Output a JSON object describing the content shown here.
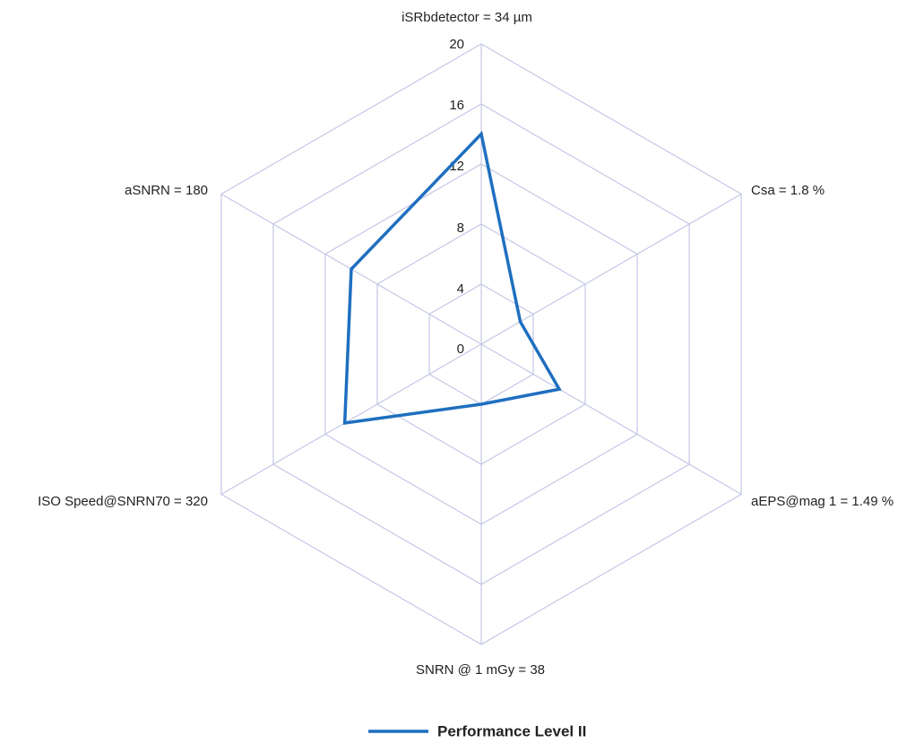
{
  "chart_data": {
    "type": "radar",
    "categories": [
      "iSRbdetector = 34 µm",
      "Csa = 1.8 %",
      "aEPS@mag 1 = 1.49 %",
      "SNRN @ 1 mGy = 38",
      "ISO Speed@SNRN70 = 320",
      "aSNRN = 180"
    ],
    "series": [
      {
        "name": "Performance Level II",
        "values": [
          14,
          3,
          6,
          4,
          10.5,
          10
        ],
        "color": "#1f6fc0"
      }
    ],
    "r_range": [
      0,
      20
    ],
    "ticks": [
      "0",
      "4",
      "8",
      "12",
      "16",
      "20"
    ],
    "grid_levels": 6,
    "grid_color": "#c4c7e6",
    "grid": true,
    "legend_position": "bottom"
  }
}
